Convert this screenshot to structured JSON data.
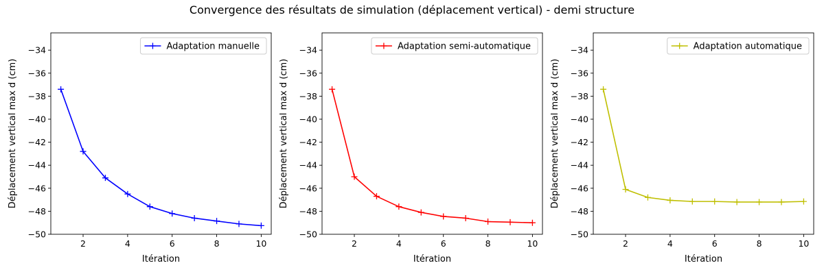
{
  "suptitle": "Convergence des résultats de simulation (déplacement vertical) - demi structure",
  "chart_data": [
    {
      "type": "line",
      "xlabel": "Itération",
      "ylabel": "Déplacement vertical max d (cm)",
      "xlim": [
        0.55,
        10.45
      ],
      "ylim": [
        -50,
        -32.5
      ],
      "xticks": [
        2,
        4,
        6,
        8,
        10
      ],
      "yticks": [
        -50,
        -48,
        -46,
        -44,
        -42,
        -40,
        -38,
        -36,
        -34
      ],
      "legend_position": "top-right",
      "series": [
        {
          "name": "Adaptation manuelle",
          "color": "#0000ff",
          "marker": "+",
          "x": [
            1,
            2,
            3,
            4,
            5,
            6,
            7,
            8,
            9,
            10
          ],
          "y": [
            -37.4,
            -42.8,
            -45.1,
            -46.5,
            -47.6,
            -48.2,
            -48.6,
            -48.85,
            -49.1,
            -49.25
          ]
        }
      ]
    },
    {
      "type": "line",
      "xlabel": "Itération",
      "ylabel": "Déplacement vertical max d (cm)",
      "xlim": [
        0.55,
        10.45
      ],
      "ylim": [
        -50,
        -32.5
      ],
      "xticks": [
        2,
        4,
        6,
        8,
        10
      ],
      "yticks": [
        -50,
        -48,
        -46,
        -44,
        -42,
        -40,
        -38,
        -36,
        -34
      ],
      "legend_position": "top-right",
      "series": [
        {
          "name": "Adaptation semi-automatique",
          "color": "#ff0000",
          "marker": "+",
          "x": [
            1,
            2,
            3,
            4,
            5,
            6,
            7,
            8,
            9,
            10
          ],
          "y": [
            -37.4,
            -45.0,
            -46.7,
            -47.6,
            -48.1,
            -48.45,
            -48.6,
            -48.9,
            -48.95,
            -49.0
          ]
        }
      ]
    },
    {
      "type": "line",
      "xlabel": "Itération",
      "ylabel": "Déplacement vertical max d (cm)",
      "xlim": [
        0.55,
        10.45
      ],
      "ylim": [
        -50,
        -32.5
      ],
      "xticks": [
        2,
        4,
        6,
        8,
        10
      ],
      "yticks": [
        -50,
        -48,
        -46,
        -44,
        -42,
        -40,
        -38,
        -36,
        -34
      ],
      "legend_position": "top-right",
      "series": [
        {
          "name": "Adaptation automatique",
          "color": "#bfbf00",
          "marker": "+",
          "x": [
            1,
            2,
            3,
            4,
            5,
            6,
            7,
            8,
            9,
            10
          ],
          "y": [
            -37.4,
            -46.1,
            -46.8,
            -47.05,
            -47.15,
            -47.15,
            -47.2,
            -47.2,
            -47.2,
            -47.15
          ]
        }
      ]
    }
  ]
}
